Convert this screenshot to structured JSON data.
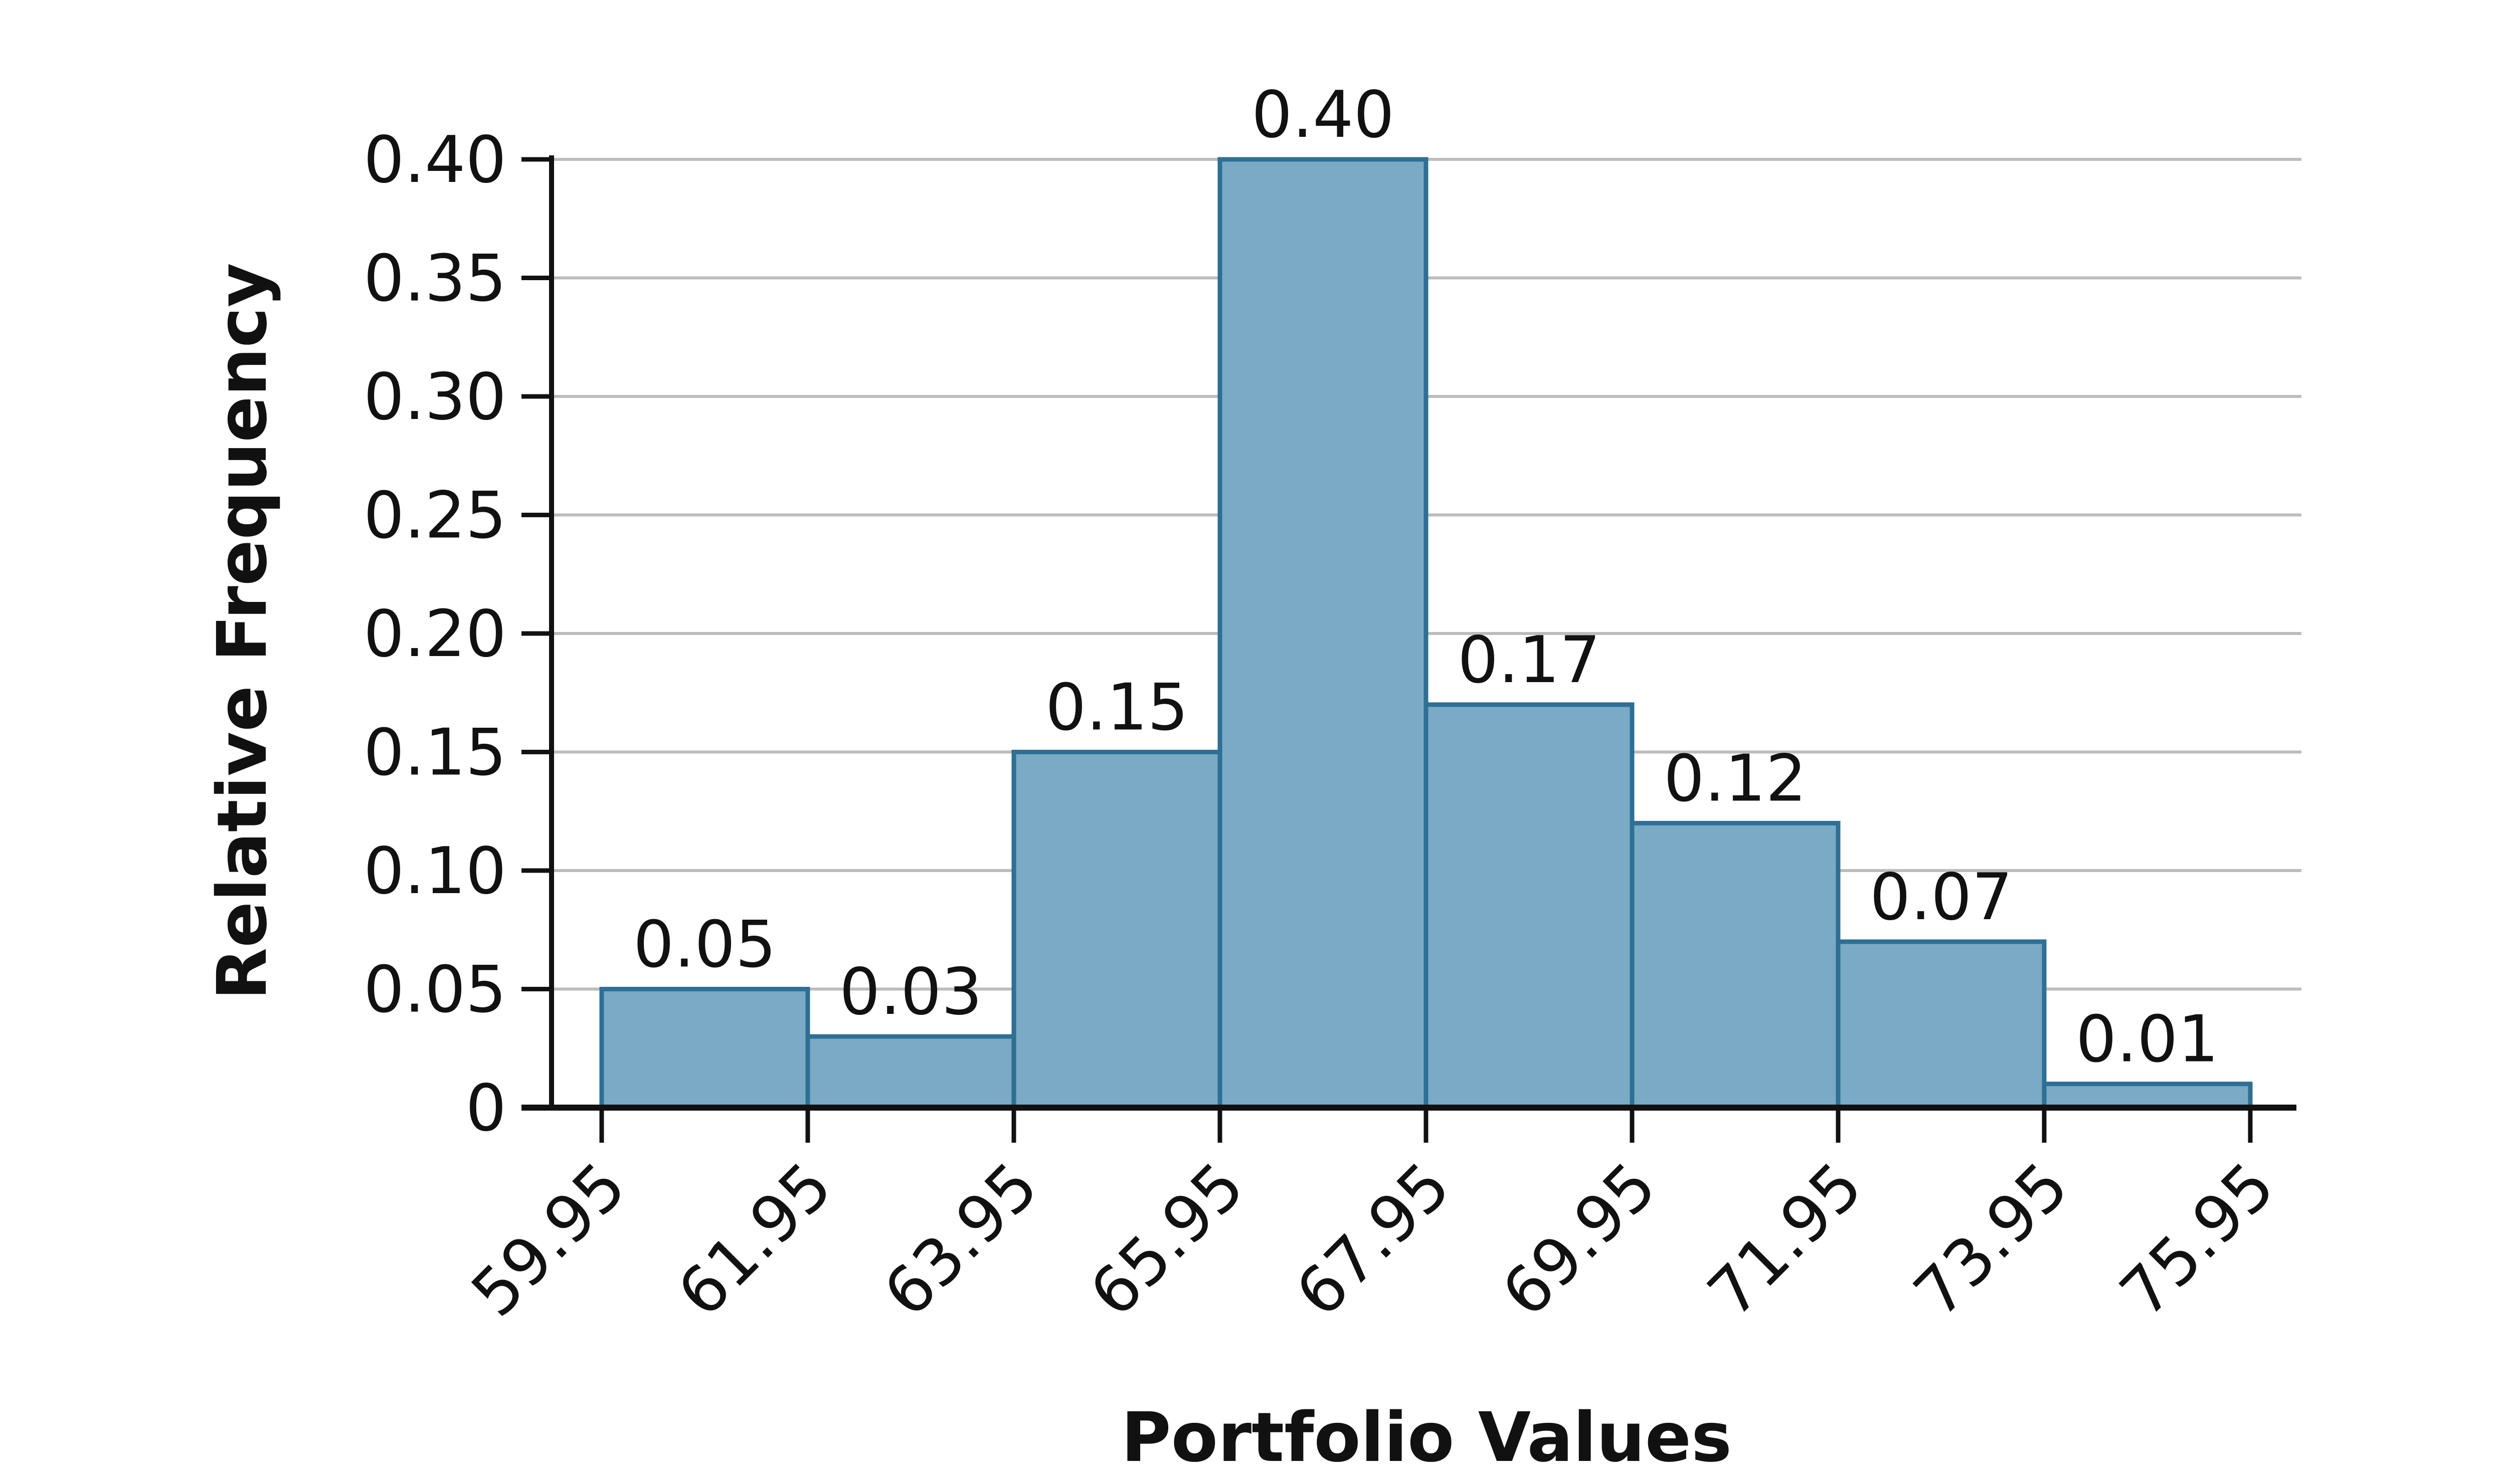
{
  "chart_data": {
    "type": "bar",
    "subtype": "histogram",
    "xlabel": "Portfolio Values",
    "ylabel": "Relative Frequency",
    "bin_edges": [
      "59.95",
      "61.95",
      "63.95",
      "65.95",
      "67.95",
      "69.95",
      "71.95",
      "73.95",
      "75.95"
    ],
    "values": [
      0.05,
      0.03,
      0.15,
      0.4,
      0.17,
      0.12,
      0.07,
      0.01
    ],
    "value_labels": [
      "0.05",
      "0.03",
      "0.15",
      "0.40",
      "0.17",
      "0.12",
      "0.07",
      "0.01"
    ],
    "yticks": [
      0,
      0.05,
      0.1,
      0.15,
      0.2,
      0.25,
      0.3,
      0.35,
      0.4
    ],
    "ytick_labels": [
      "0",
      "0.05",
      "0.10",
      "0.15",
      "0.20",
      "0.25",
      "0.30",
      "0.35",
      "0.40"
    ],
    "ylim": [
      0,
      0.4
    ],
    "grid": "horizontal",
    "legend": "none",
    "colors": {
      "bar_fill": "#7aaac6",
      "bar_stroke": "#2e6f94",
      "grid": "#bcbcbc",
      "axis": "#111111"
    }
  }
}
